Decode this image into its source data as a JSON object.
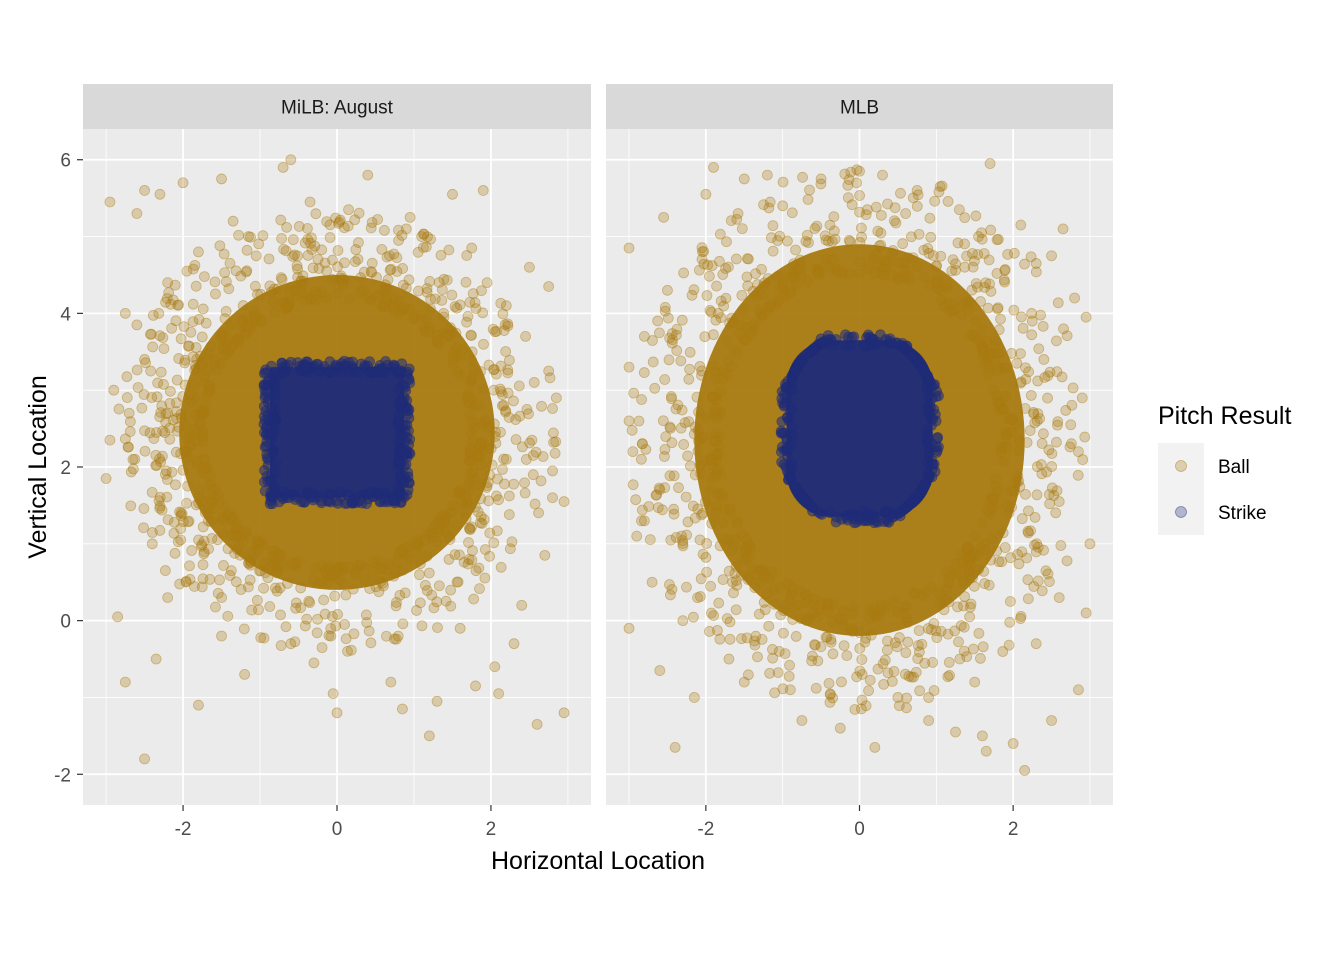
{
  "chart_data": {
    "type": "scatter",
    "facets": [
      {
        "label": "MiLB: August",
        "strike_zone": {
          "x": [
            -0.87,
            0.87
          ],
          "y": [
            1.6,
            3.3
          ],
          "shape": "square"
        },
        "ball_core": {
          "x_center": 0.0,
          "y_center": 2.45,
          "x_radius": 2.05,
          "y_radius": 2.05
        },
        "outliers": [
          [
            -2.95,
            5.45
          ],
          [
            -2.6,
            5.3
          ],
          [
            -2.0,
            5.7
          ],
          [
            -1.5,
            5.75
          ],
          [
            -0.7,
            5.9
          ],
          [
            -0.6,
            6.0
          ],
          [
            0.4,
            5.8
          ],
          [
            1.5,
            5.55
          ],
          [
            1.9,
            5.6
          ],
          [
            -2.5,
            5.6
          ],
          [
            -2.3,
            5.55
          ],
          [
            -1.35,
            5.2
          ],
          [
            -2.9,
            3.0
          ],
          [
            -2.95,
            2.35
          ],
          [
            -3.0,
            1.85
          ],
          [
            -2.75,
            4.0
          ],
          [
            -2.6,
            3.85
          ],
          [
            -2.85,
            0.05
          ],
          [
            -2.75,
            -0.8
          ],
          [
            -2.5,
            -1.8
          ],
          [
            -2.35,
            -0.5
          ],
          [
            -1.8,
            -1.1
          ],
          [
            -1.2,
            -0.7
          ],
          [
            -0.3,
            -0.55
          ],
          [
            -0.05,
            -0.95
          ],
          [
            0.0,
            -1.2
          ],
          [
            0.85,
            -1.15
          ],
          [
            1.2,
            -1.5
          ],
          [
            1.3,
            -1.05
          ],
          [
            1.8,
            -0.85
          ],
          [
            2.1,
            -0.95
          ],
          [
            2.05,
            -0.6
          ],
          [
            2.6,
            -1.35
          ],
          [
            2.95,
            -1.2
          ],
          [
            2.7,
            0.85
          ],
          [
            2.95,
            1.55
          ],
          [
            2.8,
            1.6
          ],
          [
            2.85,
            2.9
          ],
          [
            2.75,
            4.35
          ],
          [
            2.5,
            4.6
          ],
          [
            2.75,
            3.25
          ],
          [
            2.45,
            3.7
          ],
          [
            2.2,
            2.1
          ],
          [
            2.55,
            2.15
          ],
          [
            2.55,
            1.9
          ],
          [
            1.75,
            4.85
          ],
          [
            1.95,
            4.4
          ],
          [
            0.95,
            5.25
          ],
          [
            -1.15,
            5.0
          ],
          [
            0.15,
            5.35
          ],
          [
            0.8,
            4.95
          ],
          [
            -0.35,
            5.45
          ],
          [
            2.4,
            0.2
          ],
          [
            2.3,
            -0.3
          ],
          [
            1.6,
            -0.1
          ],
          [
            0.7,
            -0.8
          ],
          [
            -0.6,
            -0.3
          ],
          [
            -1.5,
            -0.2
          ],
          [
            -2.2,
            0.3
          ],
          [
            -2.4,
            1.0
          ],
          [
            -2.7,
            2.7
          ],
          [
            -2.5,
            3.4
          ],
          [
            -2.2,
            4.4
          ],
          [
            -1.8,
            4.8
          ],
          [
            1.1,
            5.0
          ],
          [
            2.2,
            4.1
          ]
        ]
      },
      {
        "label": "MLB",
        "strike_zone": {
          "x": [
            -0.95,
            0.95
          ],
          "y": [
            1.35,
            3.65
          ],
          "shape": "rounded"
        },
        "ball_core": {
          "x_center": 0.0,
          "y_center": 2.35,
          "x_radius": 2.15,
          "y_radius": 2.55
        },
        "outliers": [
          [
            -3.0,
            4.85
          ],
          [
            -2.55,
            5.25
          ],
          [
            -2.0,
            5.55
          ],
          [
            -1.5,
            5.75
          ],
          [
            -1.2,
            5.8
          ],
          [
            -0.5,
            5.75
          ],
          [
            0.0,
            5.85
          ],
          [
            0.3,
            5.8
          ],
          [
            0.75,
            5.6
          ],
          [
            1.05,
            5.65
          ],
          [
            1.7,
            5.95
          ],
          [
            -1.9,
            5.9
          ],
          [
            -3.0,
            3.3
          ],
          [
            -3.0,
            2.6
          ],
          [
            -2.95,
            2.2
          ],
          [
            -2.9,
            1.1
          ],
          [
            -2.8,
            1.3
          ],
          [
            -3.0,
            -0.1
          ],
          [
            -2.6,
            -0.65
          ],
          [
            -2.4,
            -1.65
          ],
          [
            -2.15,
            -1.0
          ],
          [
            -1.5,
            -0.8
          ],
          [
            -0.75,
            -1.3
          ],
          [
            -0.25,
            -1.4
          ],
          [
            0.2,
            -1.65
          ],
          [
            0.9,
            -1.3
          ],
          [
            1.25,
            -1.45
          ],
          [
            1.6,
            -1.5
          ],
          [
            1.65,
            -1.7
          ],
          [
            2.15,
            -1.95
          ],
          [
            2.0,
            -1.6
          ],
          [
            2.5,
            -1.3
          ],
          [
            2.85,
            -0.9
          ],
          [
            2.95,
            0.1
          ],
          [
            3.0,
            1.0
          ],
          [
            2.9,
            2.9
          ],
          [
            2.95,
            3.95
          ],
          [
            2.65,
            5.1
          ],
          [
            2.5,
            4.75
          ],
          [
            2.3,
            4.65
          ],
          [
            2.1,
            5.15
          ],
          [
            1.3,
            5.35
          ],
          [
            1.55,
            5.0
          ],
          [
            2.75,
            2.55
          ],
          [
            2.85,
            2.2
          ],
          [
            2.6,
            1.55
          ],
          [
            2.4,
            3.4
          ],
          [
            -2.5,
            4.3
          ],
          [
            -2.8,
            3.7
          ],
          [
            -2.7,
            0.5
          ],
          [
            -2.3,
            0.0
          ],
          [
            -1.7,
            -0.5
          ],
          [
            -0.9,
            -0.9
          ],
          [
            0.5,
            -1.0
          ],
          [
            1.5,
            -0.8
          ],
          [
            2.3,
            -0.3
          ],
          [
            2.6,
            0.3
          ],
          [
            2.8,
            4.2
          ],
          [
            -1.0,
            5.4
          ],
          [
            0.6,
            5.3
          ]
        ]
      }
    ],
    "series": [
      {
        "name": "Ball",
        "color": "#A87A10",
        "opacity": 0.3
      },
      {
        "name": "Strike",
        "color": "#1F2C78",
        "opacity": 0.3
      }
    ],
    "xlabel": "Horizontal Location",
    "ylabel": "Vertical Location",
    "xlim": [
      -3.3,
      3.3
    ],
    "ylim": [
      -2.4,
      6.4
    ],
    "x_ticks": [
      -2,
      0,
      2
    ],
    "y_ticks": [
      -2,
      0,
      2,
      4,
      6
    ],
    "x_tick_labels": [
      "-2",
      "0",
      "2"
    ],
    "y_tick_labels": [
      "-2",
      "0",
      "2",
      "4",
      "6"
    ],
    "legend": {
      "title": "Pitch Result",
      "position": "right"
    },
    "grid": true
  }
}
